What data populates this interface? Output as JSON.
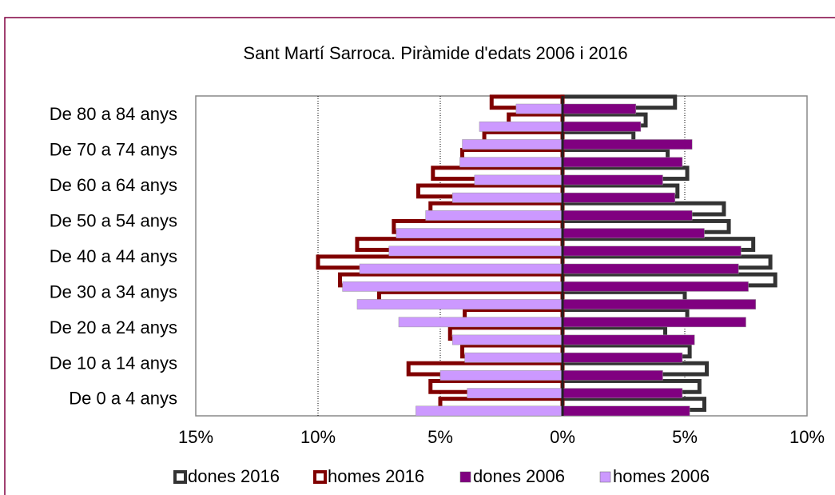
{
  "chart_data": {
    "type": "pyramid",
    "title": "Sant Martí Sarroca. Piràmide d'edats  2006 i  2016",
    "categories": [
      "De 0 a 4 anys",
      null,
      "De 10 a 14 anys",
      null,
      "De 20 a 24 anys",
      null,
      "De 30 a 34 anys",
      null,
      "De 40 a 44 anys",
      null,
      "De 50 a 54 anys",
      null,
      "De 60 a 64 anys",
      null,
      "De 70 a 74 anys",
      null,
      "De 80 a 84 anys",
      null
    ],
    "series": [
      {
        "name": "dones 2016",
        "color": "#333333",
        "outline": true,
        "values": [
          5.8,
          5.6,
          5.9,
          5.2,
          4.2,
          5.1,
          5.0,
          8.7,
          8.5,
          7.8,
          6.8,
          6.6,
          4.7,
          5.1,
          4.3,
          2.9,
          3.4,
          4.6
        ]
      },
      {
        "name": "homes 2016",
        "color": "#800000",
        "outline": true,
        "values": [
          -5.0,
          -5.4,
          -6.3,
          -4.1,
          -4.6,
          -4.0,
          -7.5,
          -9.1,
          -10.0,
          -8.4,
          -6.9,
          -5.4,
          -5.9,
          -5.3,
          -4.1,
          -3.2,
          -2.2,
          -2.9
        ]
      },
      {
        "name": "dones 2006",
        "color": "#800080",
        "outline": false,
        "values": [
          5.2,
          4.9,
          4.1,
          4.9,
          5.4,
          7.5,
          7.9,
          7.6,
          7.2,
          7.3,
          5.8,
          5.3,
          4.6,
          4.1,
          4.9,
          5.3,
          3.2,
          3.0
        ]
      },
      {
        "name": "homes 2006",
        "color": "#cc99ff",
        "outline": false,
        "values": [
          -6.0,
          -3.9,
          -5.0,
          -4.0,
          -4.5,
          -6.7,
          -8.4,
          -9.0,
          -8.3,
          -7.1,
          -6.8,
          -5.6,
          -4.5,
          -3.6,
          -4.2,
          -4.1,
          -3.4,
          -1.9
        ]
      }
    ],
    "xlim": [
      -15,
      10
    ],
    "xticks": [
      {
        "value": -15,
        "label": "15%"
      },
      {
        "value": -10,
        "label": "10%"
      },
      {
        "value": -5,
        "label": "5%"
      },
      {
        "value": 0,
        "label": "0%"
      },
      {
        "value": 5,
        "label": "5%"
      },
      {
        "value": 10,
        "label": "10%"
      }
    ],
    "grid": true,
    "legend": "bottom"
  }
}
